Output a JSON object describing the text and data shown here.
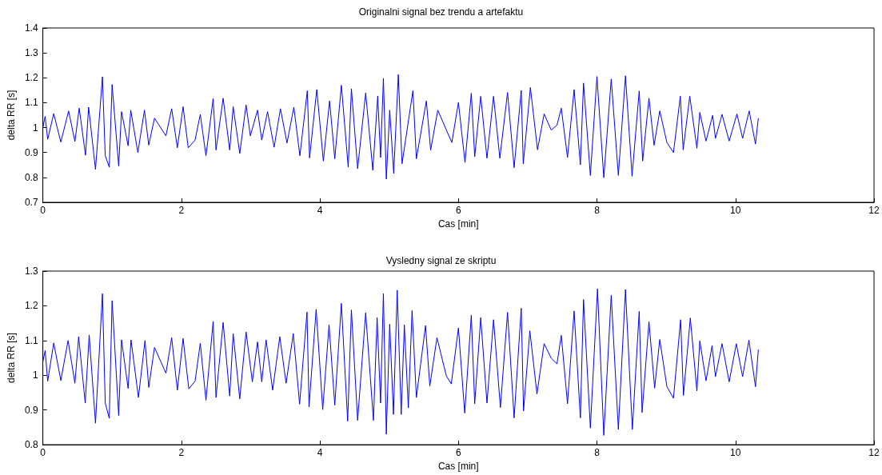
{
  "chart_data": [
    {
      "type": "line",
      "title": "Originalni signal bez trendu a artefaktu",
      "xlabel": "Cas [min]",
      "ylabel": "delta RR [s]",
      "xlim": [
        0,
        12
      ],
      "xticks": [
        0,
        2,
        4,
        6,
        8,
        10,
        12
      ],
      "ylim": [
        0.7,
        1.4
      ],
      "yticks": [
        0.7,
        0.8,
        0.9,
        1,
        1.1,
        1.2,
        1.3,
        1.4
      ],
      "grid": false,
      "marker": "none",
      "line_style": "solid",
      "series": [
        {
          "color": "#0000ff",
          "x": [
            0,
            0.033,
            0.07,
            0.157,
            0.26,
            0.372,
            0.463,
            0.525,
            0.616,
            0.661,
            0.76,
            0.86,
            0.901,
            0.959,
            1.0,
            1.095,
            1.136,
            1.231,
            1.269,
            1.372,
            1.467,
            1.529,
            1.612,
            1.777,
            1.86,
            1.942,
            2.025,
            2.099,
            2.198,
            2.273,
            2.355,
            2.459,
            2.5,
            2.603,
            2.698,
            2.748,
            2.843,
            2.934,
            2.996,
            3.099,
            3.161,
            3.244,
            3.339,
            3.43,
            3.525,
            3.624,
            3.711,
            3.818,
            3.851,
            3.955,
            4.05,
            4.14,
            4.215,
            4.31,
            4.409,
            4.455,
            4.545,
            4.661,
            4.764,
            4.835,
            4.876,
            4.917,
            4.959,
            5.008,
            5.066,
            5.132,
            5.186,
            5.343,
            5.393,
            5.537,
            5.599,
            5.702,
            5.826,
            5.905,
            6.0,
            6.095,
            6.186,
            6.235,
            6.322,
            6.412,
            6.507,
            6.598,
            6.709,
            6.804,
            6.907,
            6.936,
            7.039,
            7.142,
            7.237,
            7.34,
            7.423,
            7.485,
            7.575,
            7.67,
            7.761,
            7.806,
            7.905,
            8.0,
            8.099,
            8.206,
            8.309,
            8.412,
            8.507,
            8.61,
            8.66,
            8.751,
            8.825,
            8.907,
            9.01,
            9.105,
            9.204,
            9.245,
            9.34,
            9.443,
            9.485,
            9.575,
            9.67,
            9.711,
            9.806,
            9.909,
            10.021,
            10.103,
            10.198,
            10.289,
            10.33
          ],
          "values": [
            1.0,
            1.045,
            0.953,
            1.056,
            0.942,
            1.067,
            0.944,
            1.078,
            0.889,
            1.082,
            0.832,
            1.204,
            0.887,
            0.841,
            1.173,
            0.846,
            1.064,
            0.927,
            1.07,
            0.9,
            1.07,
            0.93,
            1.038,
            0.967,
            1.076,
            0.919,
            1.084,
            0.919,
            0.95,
            1.053,
            0.887,
            1.116,
            0.91,
            1.118,
            0.91,
            1.084,
            0.896,
            1.091,
            0.967,
            1.07,
            0.95,
            1.064,
            0.921,
            1.076,
            0.938,
            1.082,
            0.887,
            1.148,
            0.878,
            1.153,
            0.866,
            1.107,
            0.875,
            1.17,
            0.841,
            1.156,
            0.835,
            1.139,
            0.829,
            1.127,
            0.88,
            1.198,
            0.793,
            1.07,
            0.816,
            1.213,
            0.855,
            1.148,
            0.875,
            1.107,
            0.91,
            1.07,
            0.99,
            0.94,
            1.101,
            0.86,
            1.138,
            0.883,
            1.126,
            0.877,
            1.126,
            0.877,
            1.141,
            0.839,
            1.149,
            0.854,
            1.161,
            0.911,
            1.055,
            0.99,
            1.01,
            1.078,
            0.88,
            1.153,
            0.851,
            1.179,
            0.808,
            1.205,
            0.799,
            1.195,
            0.808,
            1.208,
            0.805,
            1.147,
            0.866,
            1.118,
            0.929,
            1.067,
            0.94,
            0.9,
            1.126,
            0.911,
            1.126,
            0.917,
            1.061,
            0.946,
            1.049,
            0.957,
            1.053,
            0.946,
            1.055,
            0.957,
            1.067,
            0.934,
            1.038
          ]
        }
      ]
    },
    {
      "type": "line",
      "title": "Vysledny signal ze skriptu",
      "xlabel": "Cas [min]",
      "ylabel": "delta RR [s]",
      "xlim": [
        0,
        12
      ],
      "xticks": [
        0,
        2,
        4,
        6,
        8,
        10,
        12
      ],
      "ylim": [
        0.8,
        1.3
      ],
      "yticks": [
        0.8,
        0.9,
        1,
        1.1,
        1.2,
        1.3
      ],
      "grid": false,
      "marker": "none",
      "line_style": "solid",
      "series": [
        {
          "color": "#0000ff",
          "x": [
            0,
            0.033,
            0.07,
            0.157,
            0.26,
            0.364,
            0.463,
            0.517,
            0.612,
            0.669,
            0.76,
            0.86,
            0.901,
            0.959,
            1.0,
            1.095,
            1.136,
            1.231,
            1.273,
            1.38,
            1.475,
            1.529,
            1.612,
            1.777,
            1.86,
            1.942,
            2.025,
            2.107,
            2.198,
            2.273,
            2.355,
            2.459,
            2.5,
            2.603,
            2.698,
            2.748,
            2.843,
            2.934,
            3.025,
            3.099,
            3.161,
            3.223,
            3.318,
            3.421,
            3.512,
            3.616,
            3.707,
            3.814,
            3.843,
            3.946,
            4.041,
            4.132,
            4.215,
            4.31,
            4.401,
            4.455,
            4.545,
            4.661,
            4.773,
            4.826,
            4.876,
            4.917,
            4.959,
            5.008,
            5.062,
            5.116,
            5.174,
            5.219,
            5.277,
            5.331,
            5.393,
            5.525,
            5.587,
            5.69,
            5.826,
            5.897,
            6.0,
            6.091,
            6.186,
            6.235,
            6.322,
            6.412,
            6.507,
            6.606,
            6.709,
            6.804,
            6.907,
            6.94,
            7.031,
            7.134,
            7.237,
            7.34,
            7.423,
            7.485,
            7.575,
            7.67,
            7.761,
            7.806,
            7.905,
            8.008,
            8.099,
            8.206,
            8.309,
            8.412,
            8.511,
            8.61,
            8.652,
            8.751,
            8.833,
            8.907,
            9.01,
            9.105,
            9.208,
            9.249,
            9.348,
            9.443,
            9.485,
            9.575,
            9.662,
            9.711,
            9.806,
            9.909,
            10.012,
            10.103,
            10.194,
            10.289,
            10.33
          ],
          "values": [
            1.039,
            1.071,
            0.983,
            1.093,
            0.985,
            1.1,
            0.977,
            1.111,
            0.92,
            1.116,
            0.862,
            1.235,
            0.92,
            0.876,
            1.215,
            0.884,
            1.102,
            0.962,
            1.102,
            0.936,
            1.1,
            0.965,
            1.08,
            1.006,
            1.108,
            0.957,
            1.106,
            0.961,
            0.983,
            1.092,
            0.928,
            1.155,
            0.936,
            1.152,
            0.94,
            1.12,
            0.932,
            1.125,
            0.981,
            1.096,
            0.981,
            1.102,
            0.957,
            1.111,
            0.977,
            1.12,
            0.917,
            1.182,
            0.909,
            1.19,
            0.901,
            1.145,
            0.914,
            1.207,
            0.868,
            1.188,
            0.87,
            1.18,
            0.87,
            1.166,
            0.92,
            1.235,
            0.83,
            1.147,
            0.887,
            1.245,
            0.887,
            1.145,
            0.906,
            1.186,
            0.936,
            1.143,
            0.969,
            1.108,
            0.998,
            0.975,
            1.136,
            0.891,
            1.173,
            0.918,
            1.166,
            0.92,
            1.16,
            0.907,
            1.181,
            0.877,
            1.193,
            0.897,
            1.128,
            0.946,
            1.091,
            1.049,
            1.033,
            1.115,
            0.918,
            1.185,
            0.877,
            1.218,
            0.848,
            1.249,
            0.827,
            1.23,
            0.844,
            1.247,
            0.844,
            1.184,
            0.893,
            1.154,
            0.963,
            1.103,
            0.967,
            0.934,
            1.16,
            0.942,
            1.165,
            0.955,
            1.099,
            0.984,
            1.085,
            0.996,
            1.091,
            0.981,
            1.091,
            0.996,
            1.101,
            0.967,
            1.074
          ]
        }
      ]
    }
  ]
}
